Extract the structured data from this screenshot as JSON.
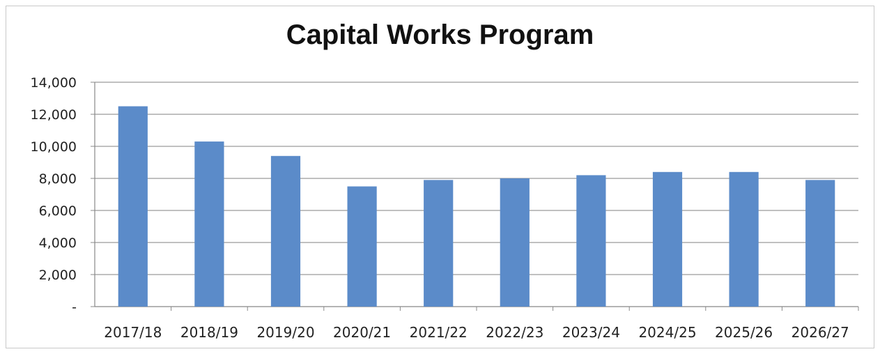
{
  "chart_data": {
    "type": "bar",
    "title": "Capital Works Program",
    "xlabel": "",
    "ylabel": "",
    "categories": [
      "2017/18",
      "2018/19",
      "2019/20",
      "2020/21",
      "2021/22",
      "2022/23",
      "2023/24",
      "2024/25",
      "2025/26",
      "2026/27"
    ],
    "values": [
      12500,
      10300,
      9400,
      7500,
      7900,
      8000,
      8200,
      8400,
      8400,
      7900
    ],
    "ylim": [
      0,
      14000
    ],
    "yticks": [
      0,
      2000,
      4000,
      6000,
      8000,
      10000,
      12000,
      14000
    ],
    "ytick_labels": [
      "-",
      "2,000",
      "4,000",
      "6,000",
      "8,000",
      "10,000",
      "12,000",
      "14,000"
    ],
    "grid": true,
    "legend": "none",
    "bar_color": "#5b8bc9"
  }
}
